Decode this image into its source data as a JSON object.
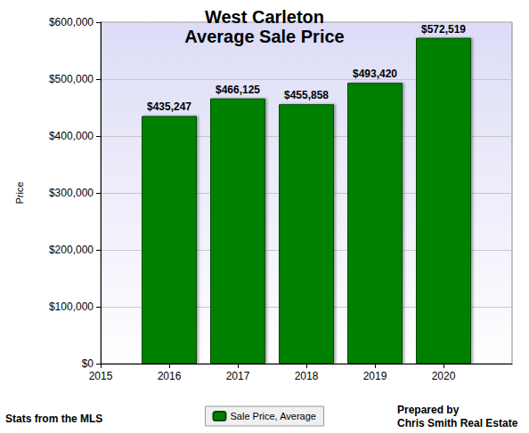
{
  "chart_data": {
    "type": "bar",
    "title": "West Carleton",
    "subtitle": "Average Sale Price",
    "y_label": "Price",
    "x": [
      2016,
      2017,
      2018,
      2019,
      2020
    ],
    "series": [
      {
        "name": "Sale Price, Average",
        "color": "#008000",
        "values": [
          435247,
          466125,
          455858,
          493420,
          572519
        ],
        "value_labels": [
          "$435,247",
          "$466,125",
          "$455,858",
          "$493,420",
          "$572,519"
        ]
      }
    ],
    "xlim": [
      2015,
      2021
    ],
    "xticks": [
      2015,
      2016,
      2017,
      2018,
      2019,
      2020
    ],
    "ylim": [
      0,
      600000
    ],
    "yticks": [
      {
        "value": 0,
        "label": "$0"
      },
      {
        "value": 100000,
        "label": "$100,000"
      },
      {
        "value": 200000,
        "label": "$200,000"
      },
      {
        "value": 300000,
        "label": "$300,000"
      },
      {
        "value": 400000,
        "label": "$400,000"
      },
      {
        "value": 500000,
        "label": "$500,000"
      },
      {
        "value": 600000,
        "label": "$600,000"
      }
    ],
    "grid": true,
    "legend": "bottom",
    "data_labels": true,
    "annotations": [
      "Stats from the MLS",
      "Prepared by\nChris Smith Real Estate"
    ]
  }
}
